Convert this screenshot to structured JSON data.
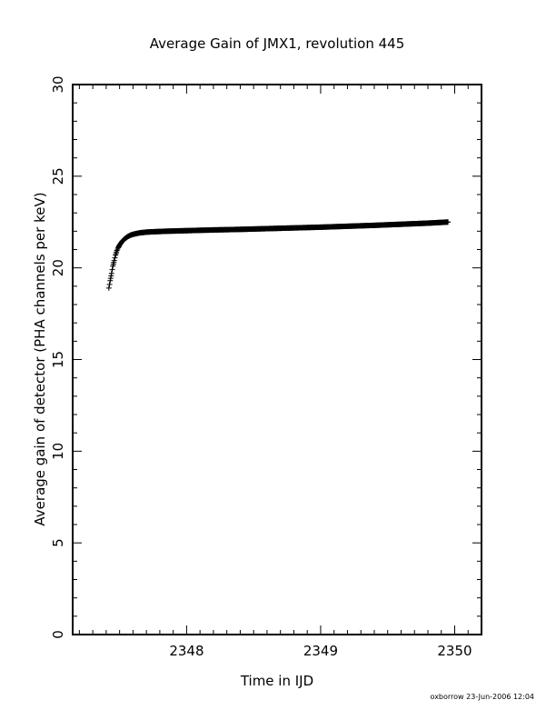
{
  "chart_data": {
    "type": "scatter",
    "title": "Average Gain of JMX1, revolution 445",
    "xlabel": "Time in IJD",
    "ylabel": "Average gain of detector (PHA channels per keV)",
    "xlim": [
      2347.15,
      2350.2
    ],
    "ylim": [
      0,
      30
    ],
    "xticks": [
      2348,
      2349,
      2350
    ],
    "xtick_labels": [
      "2348",
      "2349",
      "2350"
    ],
    "yticks": [
      0,
      5,
      10,
      15,
      20,
      25,
      30
    ],
    "ytick_labels": [
      "0",
      "5",
      "10",
      "15",
      "20",
      "25",
      "30"
    ],
    "marker": "plus",
    "grid": false,
    "series": [
      {
        "x": [
          2347.42,
          2347.43,
          2347.44,
          2347.45,
          2347.46,
          2347.47,
          2347.48,
          2347.49,
          2347.5,
          2347.52,
          2347.54,
          2347.56,
          2347.58,
          2347.6,
          2347.63,
          2347.66,
          2347.7,
          2347.75,
          2347.85,
          2348.0,
          2348.2,
          2348.4,
          2348.6,
          2348.8,
          2349.0,
          2349.2,
          2349.4,
          2349.6,
          2349.8,
          2349.95
        ],
        "y": [
          18.9,
          19.3,
          19.7,
          20.1,
          20.4,
          20.7,
          20.95,
          21.1,
          21.25,
          21.45,
          21.6,
          21.7,
          21.78,
          21.83,
          21.88,
          21.92,
          21.95,
          21.97,
          22.0,
          22.03,
          22.07,
          22.1,
          22.14,
          22.18,
          22.22,
          22.27,
          22.32,
          22.38,
          22.44,
          22.5
        ]
      }
    ]
  },
  "footer": {
    "stamp": "oxborrow 23-Jun-2006 12:04"
  }
}
